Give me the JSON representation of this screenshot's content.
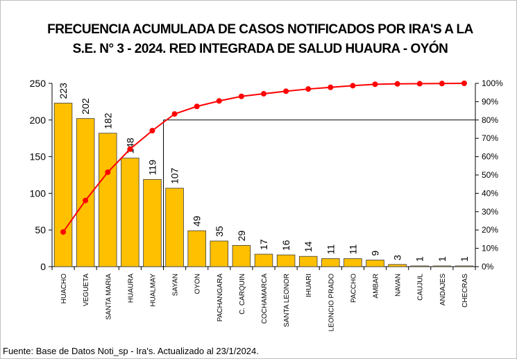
{
  "chart_data": {
    "type": "pareto",
    "title": "FRECUENCIA ACUMULADA DE CASOS NOTIFICADOS POR IRA'S A LA",
    "subtitle": "S.E. N° 3 - 2024. RED INTEGRADA DE SALUD HUAURA - OYÓN",
    "source": "Fuente: Base de Datos Noti_sp - Ira's. Actualizado al 23/1/2024.",
    "categories": [
      "HUACHO",
      "VEGUETA",
      "SANTA MARIA",
      "HUAURA",
      "HUALMAY",
      "SAYAN",
      "OYON",
      "PACHANGARA",
      "C. CARQUIN",
      "COCHAMARCA",
      "SANTA LEONOR",
      "IHUARI",
      "LEONCIO PRADO",
      "PACCHO",
      "AMBAR",
      "NAVAN",
      "CAUJUL",
      "ANDAJES",
      "CHECRAS"
    ],
    "values": [
      223,
      202,
      182,
      148,
      119,
      107,
      49,
      35,
      29,
      17,
      16,
      14,
      11,
      11,
      9,
      3,
      1,
      1,
      1
    ],
    "color": "#FFC000",
    "line_values": [
      18.9,
      36.1,
      51.5,
      64.1,
      74.2,
      83.3,
      87.4,
      90.4,
      92.9,
      94.3,
      95.7,
      96.9,
      97.8,
      98.7,
      99.5,
      99.7,
      99.8,
      99.9,
      100
    ],
    "line_color": "#FF0000",
    "line_axis": "y2",
    "reference_line": 80,
    "ylim": [
      0,
      250
    ],
    "yticks": [
      0,
      50,
      100,
      150,
      200,
      250
    ],
    "y2lim": [
      0,
      100
    ],
    "y2ticks": [
      {
        "value": 0,
        "label": "0%"
      },
      {
        "value": 10,
        "label": "10%"
      },
      {
        "value": 20,
        "label": "20%"
      },
      {
        "value": 30,
        "label": "30%"
      },
      {
        "value": 40,
        "label": "40%"
      },
      {
        "value": 50,
        "label": "50%"
      },
      {
        "value": 60,
        "label": "60%"
      },
      {
        "value": 70,
        "label": "70%"
      },
      {
        "value": 80,
        "label": "80%"
      },
      {
        "value": 90,
        "label": "90%"
      },
      {
        "value": 100,
        "label": "100%"
      }
    ],
    "grid": false
  }
}
